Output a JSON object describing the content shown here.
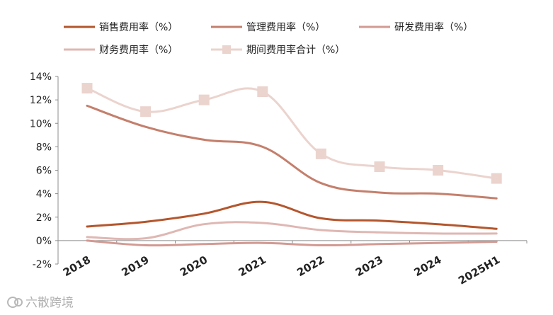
{
  "chart_data": {
    "type": "line",
    "categories": [
      "2018",
      "2019",
      "2020",
      "2021",
      "2022",
      "2023",
      "2024",
      "2025H1"
    ],
    "ylim": [
      -2,
      14
    ],
    "y_ticks": [
      -2,
      0,
      2,
      4,
      6,
      8,
      10,
      12,
      14
    ],
    "y_tick_labels": [
      "-2%",
      "0%",
      "2%",
      "4%",
      "6%",
      "8%",
      "10%",
      "12%",
      "14%"
    ],
    "grid": false,
    "legend_placement": "top",
    "series": [
      {
        "name": "销售费用率（%）",
        "color": "#B4562D",
        "values": [
          1.2,
          1.6,
          2.3,
          3.3,
          1.9,
          1.7,
          1.4,
          1.0
        ],
        "marker": "none"
      },
      {
        "name": "管理费用率（%）",
        "color": "#C47F6C",
        "values": [
          11.5,
          9.7,
          8.6,
          8.0,
          4.9,
          4.1,
          4.0,
          3.6
        ],
        "marker": "none"
      },
      {
        "name": "研发费用率（%）",
        "color": "#D29A93",
        "values": [
          0.0,
          -0.4,
          -0.3,
          -0.2,
          -0.4,
          -0.3,
          -0.2,
          -0.1
        ],
        "marker": "none"
      },
      {
        "name": "财务费用率（%）",
        "color": "#DFB7B3",
        "values": [
          0.3,
          0.2,
          1.4,
          1.5,
          0.9,
          0.7,
          0.6,
          0.6
        ],
        "marker": "none"
      },
      {
        "name": "期间费用率合计（%）",
        "color": "#EBD3CE",
        "values": [
          13.0,
          11.0,
          12.0,
          12.7,
          7.4,
          6.3,
          6.0,
          5.3
        ],
        "marker": "square"
      }
    ]
  },
  "watermark": {
    "text": "六散跨境"
  }
}
